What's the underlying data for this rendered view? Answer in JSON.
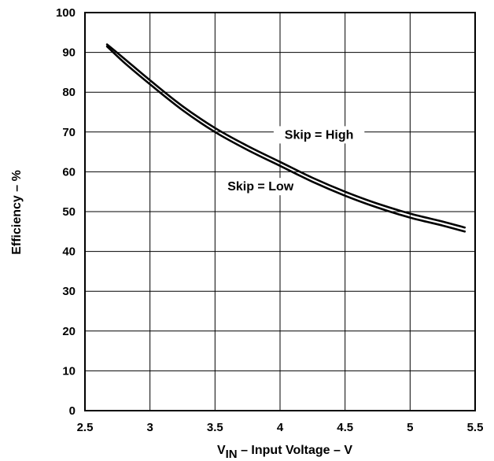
{
  "chart_data": {
    "type": "line",
    "title": "",
    "xlabel_prefix": "V",
    "xlabel_subscript": "IN",
    "xlabel_rest": " – Input Voltage – V",
    "ylabel": "Efficiency – %",
    "xlim": [
      2.5,
      5.5
    ],
    "ylim": [
      0,
      100
    ],
    "x_ticks": [
      "2.5",
      "3",
      "3.5",
      "4",
      "4.5",
      "5",
      "5.5"
    ],
    "y_ticks": [
      "0",
      "10",
      "20",
      "30",
      "40",
      "50",
      "60",
      "70",
      "80",
      "90",
      "100"
    ],
    "grid": true,
    "line_color": "#000000",
    "series": [
      {
        "name": "Skip = High",
        "x": [
          2.67,
          2.8,
          3.0,
          3.25,
          3.5,
          3.75,
          4.0,
          4.25,
          4.5,
          4.75,
          5.0,
          5.25,
          5.42
        ],
        "y": [
          92,
          88.5,
          83,
          76.5,
          71,
          66.5,
          62.5,
          58.5,
          55,
          52,
          49.5,
          47.5,
          46
        ]
      },
      {
        "name": "Skip = Low",
        "x": [
          2.67,
          2.8,
          3.0,
          3.25,
          3.5,
          3.75,
          4.0,
          4.25,
          4.5,
          4.75,
          5.0,
          5.25,
          5.42
        ],
        "y": [
          91.5,
          87.5,
          82,
          75.5,
          70,
          65.5,
          61.5,
          57.5,
          54,
          51,
          48.5,
          46.5,
          45
        ]
      }
    ],
    "annotations": [
      {
        "text": "Skip = High",
        "x": 4.3,
        "y": 68.5
      },
      {
        "text": "Skip = Low",
        "x": 3.85,
        "y": 55.5
      }
    ]
  }
}
